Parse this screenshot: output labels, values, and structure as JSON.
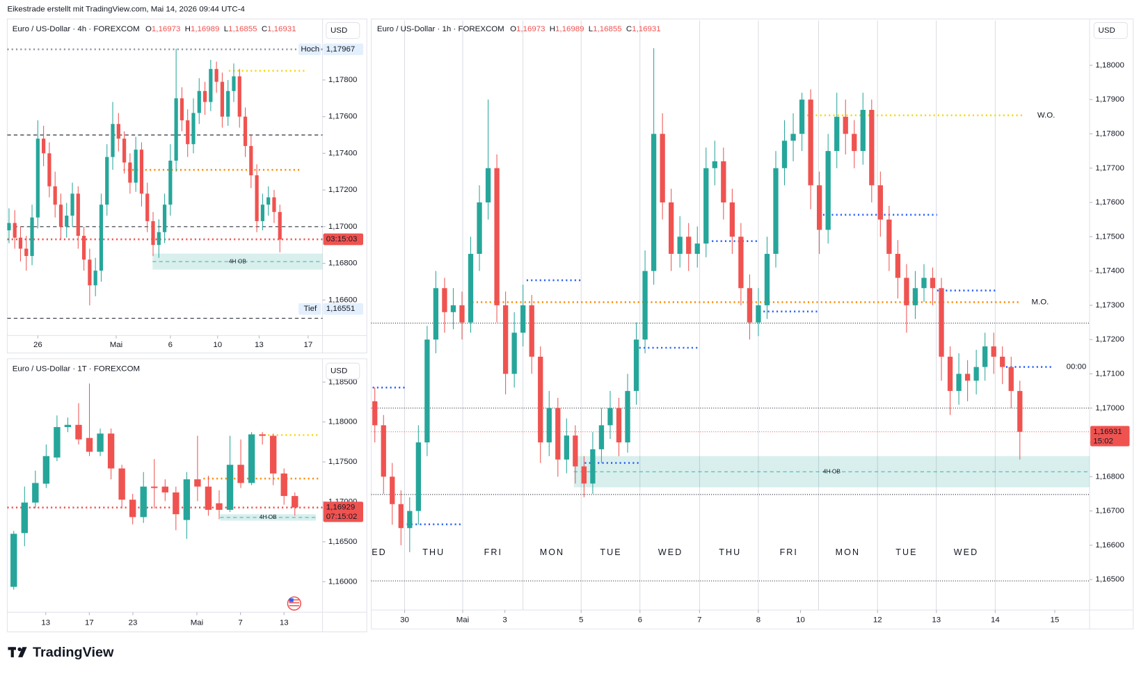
{
  "header": {
    "title": "Eikestrade erstellt mit TradingView.com, Mai 14, 2026 09:44 UTC-4"
  },
  "footer": {
    "logo": "TradingView"
  },
  "chart_data": [
    {
      "type": "candlestick",
      "title": "Euro / US-Dollar · 4h · FOREXCOM",
      "ohlc_legend": [
        {
          "key": "O",
          "text": "1,16973"
        },
        {
          "key": "H",
          "text": "1,16989"
        },
        {
          "key": "L",
          "text": "1,16855"
        },
        {
          "key": "C",
          "text": "1,16931"
        }
      ],
      "currency": "USD",
      "up_color": "#26a69a",
      "down_color": "#ef5350",
      "grid": false,
      "open": [
        1.1698,
        1.1702,
        1.1694,
        1.1688,
        1.1684,
        1.1705,
        1.1748,
        1.174,
        1.1722,
        1.1712,
        1.17,
        1.1706,
        1.1718,
        1.1695,
        1.1682,
        1.1668,
        1.1676,
        1.1712,
        1.1738,
        1.1756,
        1.1748,
        1.1735,
        1.1724,
        1.1742,
        1.1718,
        1.1703,
        1.169,
        1.1697,
        1.1712,
        1.1736,
        1.177,
        1.1758,
        1.1745,
        1.1762,
        1.1774,
        1.1768,
        1.1786,
        1.1779,
        1.176,
        1.1774,
        1.1782,
        1.176,
        1.1744,
        1.1728,
        1.1703,
        1.1712,
        1.1716,
        1.1708
      ],
      "high": [
        1.171,
        1.1709,
        1.17,
        1.1695,
        1.1712,
        1.1758,
        1.1755,
        1.1746,
        1.173,
        1.1718,
        1.1713,
        1.1724,
        1.1722,
        1.17,
        1.1688,
        1.1683,
        1.1718,
        1.1745,
        1.1768,
        1.1762,
        1.1752,
        1.174,
        1.1749,
        1.1746,
        1.1724,
        1.1708,
        1.1704,
        1.1718,
        1.1745,
        1.1797,
        1.1776,
        1.1764,
        1.177,
        1.1781,
        1.1779,
        1.1791,
        1.179,
        1.1784,
        1.178,
        1.1789,
        1.1786,
        1.1765,
        1.175,
        1.1734,
        1.1718,
        1.1722,
        1.172,
        1.1712
      ],
      "low": [
        1.1691,
        1.1688,
        1.1681,
        1.1676,
        1.1679,
        1.1699,
        1.1733,
        1.1716,
        1.1705,
        1.1693,
        1.1694,
        1.17,
        1.1688,
        1.1676,
        1.1657,
        1.1662,
        1.167,
        1.1706,
        1.1731,
        1.1741,
        1.1729,
        1.1718,
        1.1719,
        1.1711,
        1.1697,
        1.1684,
        1.1683,
        1.1691,
        1.1706,
        1.173,
        1.1752,
        1.1738,
        1.174,
        1.1756,
        1.1761,
        1.1763,
        1.1773,
        1.1754,
        1.1755,
        1.1768,
        1.1754,
        1.1738,
        1.1721,
        1.1697,
        1.1698,
        1.1706,
        1.1702,
        1.1686
      ],
      "close": [
        1.1702,
        1.1694,
        1.1688,
        1.1684,
        1.1705,
        1.1748,
        1.174,
        1.1722,
        1.1712,
        1.17,
        1.1706,
        1.1718,
        1.1695,
        1.1682,
        1.1668,
        1.1676,
        1.1712,
        1.1738,
        1.1756,
        1.1748,
        1.1735,
        1.1724,
        1.1742,
        1.1718,
        1.1703,
        1.169,
        1.1697,
        1.1712,
        1.1736,
        1.177,
        1.1758,
        1.1745,
        1.1762,
        1.1774,
        1.1768,
        1.1786,
        1.1779,
        1.176,
        1.1774,
        1.1782,
        1.176,
        1.1744,
        1.1728,
        1.1703,
        1.1712,
        1.1716,
        1.1708,
        1.1693
      ],
      "xlim": [
        -0.3,
        54.4
      ],
      "xticks": [
        {
          "value": 5,
          "label": "26"
        },
        {
          "value": 18.6,
          "label": "Mai"
        },
        {
          "value": 28,
          "label": "6"
        },
        {
          "value": 36.2,
          "label": "10"
        },
        {
          "value": 43.4,
          "label": "13"
        },
        {
          "value": 51.9,
          "label": "17"
        }
      ],
      "ylim": [
        1.16406,
        1.18125
      ],
      "yticks": [
        {
          "value": 1.166,
          "label": "1,16600"
        },
        {
          "value": 1.168,
          "label": "1,16800"
        },
        {
          "value": 1.17,
          "label": "1,17000"
        },
        {
          "value": 1.172,
          "label": "1,17200"
        },
        {
          "value": 1.174,
          "label": "1,17400"
        },
        {
          "value": 1.176,
          "label": "1,17600"
        },
        {
          "value": 1.178,
          "label": "1,17800"
        }
      ],
      "levels": [
        {
          "value": 1.175,
          "color": "#131722",
          "style": "dashed"
        },
        {
          "value": 1.17,
          "color": "#131722",
          "style": "dashed"
        },
        {
          "value": 1.165,
          "color": "#131722",
          "style": "dashed"
        },
        {
          "value": 1.17967,
          "color": "#9598a1",
          "style": "dotted"
        },
        {
          "value": 1.1785,
          "color": "#f5d90a",
          "style": "dotted"
        },
        {
          "value": 1.1731,
          "color": "#ff8c00",
          "style": "dotted"
        },
        {
          "value": 1.16931,
          "color": "#ef5350",
          "style": "dotted"
        }
      ],
      "zones": [
        {
          "label": "4H OB",
          "low": 1.16766,
          "high": 1.16853
        }
      ],
      "price_labels": [
        {
          "tag": "Hoch",
          "text": "1,17967",
          "value": 1.17967
        },
        {
          "tag": "Tief",
          "text": "1,16551",
          "value": 1.16551
        },
        {
          "text": "03:15:03",
          "value": 1.16931,
          "color": "#ef5350"
        }
      ]
    },
    {
      "type": "candlestick",
      "title": "Euro / US-Dollar · 1T · FOREXCOM",
      "currency": "USD",
      "up_color": "#26a69a",
      "down_color": "#ef5350",
      "grid": false,
      "open": [
        1.15936,
        1.16609,
        1.16991,
        1.17227,
        1.17555,
        1.17936,
        1.17964,
        1.178,
        1.17627,
        1.17855,
        1.17418,
        1.17027,
        1.16809,
        1.17191,
        1.17191,
        1.17118,
        1.16773,
        1.17282,
        1.17191,
        1.16982,
        1.169,
        1.17464,
        1.17236,
        1.17845,
        1.17827,
        1.17355,
        1.17073
      ],
      "high": [
        1.16636,
        1.17191,
        1.17391,
        1.17718,
        1.18082,
        1.18055,
        1.18236,
        1.18482,
        1.17918,
        1.17918,
        1.17464,
        1.171,
        1.17373,
        1.17536,
        1.17282,
        1.17191,
        1.17373,
        1.17827,
        1.17327,
        1.17145,
        1.17827,
        1.17782,
        1.17873,
        1.17873,
        1.17855,
        1.17418,
        1.17118
      ],
      "low": [
        1.159,
        1.16445,
        1.16918,
        1.17173,
        1.17509,
        1.17873,
        1.17718,
        1.17573,
        1.17573,
        1.17282,
        1.16918,
        1.16718,
        1.16736,
        1.16918,
        1.17009,
        1.16645,
        1.16536,
        1.17009,
        1.16827,
        1.16782,
        1.16873,
        1.17173,
        1.17209,
        1.17718,
        1.17209,
        1.16964,
        1.16827
      ],
      "close": [
        1.166,
        1.16991,
        1.17236,
        1.17573,
        1.17936,
        1.17964,
        1.17782,
        1.17627,
        1.17855,
        1.17418,
        1.17027,
        1.16809,
        1.17191,
        1.17173,
        1.17118,
        1.16845,
        1.17282,
        1.17191,
        1.169,
        1.169,
        1.17464,
        1.17236,
        1.17845,
        1.17827,
        1.17355,
        1.17073,
        1.16929
      ],
      "xlim": [
        -0.6,
        28.56
      ],
      "xticks": [
        {
          "value": 2.96,
          "label": "13"
        },
        {
          "value": 6.99,
          "label": "17"
        },
        {
          "value": 11.02,
          "label": "23"
        },
        {
          "value": 16.94,
          "label": "Mai"
        },
        {
          "value": 20.97,
          "label": "7"
        },
        {
          "value": 25,
          "label": "13"
        }
      ],
      "ylim": [
        1.15618,
        1.18773
      ],
      "yticks": [
        {
          "value": 1.16,
          "label": "1,16000"
        },
        {
          "value": 1.165,
          "label": "1,16500"
        },
        {
          "value": 1.17,
          "label": "1,17000"
        },
        {
          "value": 1.175,
          "label": "1,17500"
        },
        {
          "value": 1.18,
          "label": "1,18000"
        },
        {
          "value": 1.185,
          "label": "1,18500"
        }
      ],
      "levels": [
        {
          "value": 1.17836,
          "color": "#f5d90a",
          "style": "dotted"
        },
        {
          "value": 1.17291,
          "color": "#ff8c00",
          "style": "dotted"
        },
        {
          "value": 1.16929,
          "color": "#ef5350",
          "style": "dotted"
        }
      ],
      "zones": [
        {
          "label": "4H OB",
          "low": 1.16764,
          "high": 1.16845
        }
      ],
      "price_labels": [
        {
          "text": "1,16929",
          "sub": "07:15:02",
          "value": 1.16929,
          "color": "#ef5350"
        }
      ]
    },
    {
      "type": "candlestick",
      "title": "Euro / US-Dollar · 1h · FOREXCOM",
      "ohlc_legend": [
        {
          "key": "O",
          "text": "1,16973"
        },
        {
          "key": "H",
          "text": "1,16989"
        },
        {
          "key": "L",
          "text": "1,16855"
        },
        {
          "key": "C",
          "text": "1,16931"
        }
      ],
      "currency": "USD",
      "up_color": "#26a69a",
      "down_color": "#ef5350",
      "grid": false,
      "session_labels": [
        "ED",
        "THU",
        "FRI",
        "MON",
        "TUE",
        "WED",
        "THU",
        "FRI",
        "MON",
        "TUE",
        "WED"
      ],
      "open": [
        1.1702,
        1.1695,
        1.168,
        1.1672,
        1.1665,
        1.167,
        1.169,
        1.172,
        1.1735,
        1.1728,
        1.173,
        1.1725,
        1.1745,
        1.176,
        1.177,
        1.173,
        1.171,
        1.1722,
        1.173,
        1.1715,
        1.169,
        1.17,
        1.1685,
        1.1692,
        1.1683,
        1.1678,
        1.1688,
        1.1695,
        1.17,
        1.169,
        1.1705,
        1.172,
        1.174,
        1.178,
        1.176,
        1.1745,
        1.175,
        1.1745,
        1.1748,
        1.177,
        1.1772,
        1.176,
        1.175,
        1.1735,
        1.1725,
        1.173,
        1.1745,
        1.177,
        1.1778,
        1.178,
        1.179,
        1.1765,
        1.1752,
        1.1775,
        1.1785,
        1.178,
        1.1775,
        1.1787,
        1.1765,
        1.1755,
        1.1745,
        1.1738,
        1.173,
        1.1735,
        1.1738,
        1.1735,
        1.1715,
        1.1705,
        1.171,
        1.1708,
        1.1712,
        1.1718,
        1.1715,
        1.1712,
        1.1705
      ],
      "high": [
        1.1706,
        1.1698,
        1.1684,
        1.1676,
        1.1674,
        1.1695,
        1.1724,
        1.174,
        1.1738,
        1.1735,
        1.1734,
        1.175,
        1.1765,
        1.179,
        1.1774,
        1.1734,
        1.1728,
        1.1736,
        1.1733,
        1.1718,
        1.1705,
        1.1703,
        1.1697,
        1.1695,
        1.1686,
        1.1693,
        1.17,
        1.1705,
        1.1703,
        1.171,
        1.1725,
        1.1746,
        1.1805,
        1.1786,
        1.1764,
        1.1756,
        1.1754,
        1.1753,
        1.1776,
        1.1778,
        1.1776,
        1.1764,
        1.1754,
        1.1739,
        1.1735,
        1.175,
        1.1775,
        1.1784,
        1.1786,
        1.1792,
        1.1793,
        1.1769,
        1.178,
        1.1792,
        1.179,
        1.1784,
        1.1792,
        1.179,
        1.1769,
        1.1759,
        1.1749,
        1.1742,
        1.174,
        1.1742,
        1.1741,
        1.1738,
        1.1718,
        1.1716,
        1.1714,
        1.1717,
        1.1722,
        1.1722,
        1.1718,
        1.1715,
        1.1708
      ],
      "low": [
        1.169,
        1.1675,
        1.1666,
        1.166,
        1.1658,
        1.1666,
        1.1686,
        1.1716,
        1.1722,
        1.1723,
        1.172,
        1.1722,
        1.174,
        1.1755,
        1.1725,
        1.1704,
        1.1706,
        1.1718,
        1.171,
        1.1684,
        1.1686,
        1.168,
        1.1681,
        1.1678,
        1.1674,
        1.1675,
        1.1684,
        1.1691,
        1.1686,
        1.1687,
        1.1701,
        1.1716,
        1.1736,
        1.1755,
        1.174,
        1.1741,
        1.174,
        1.1741,
        1.1744,
        1.1765,
        1.1755,
        1.1745,
        1.173,
        1.172,
        1.1721,
        1.1726,
        1.1741,
        1.1765,
        1.1772,
        1.1775,
        1.1758,
        1.1745,
        1.1748,
        1.177,
        1.1774,
        1.177,
        1.1771,
        1.176,
        1.175,
        1.174,
        1.1732,
        1.1722,
        1.1726,
        1.1731,
        1.173,
        1.1708,
        1.1698,
        1.1701,
        1.1702,
        1.1704,
        1.1708,
        1.171,
        1.1707,
        1.17,
        1.1685
      ],
      "close": [
        1.1695,
        1.168,
        1.1672,
        1.1665,
        1.167,
        1.169,
        1.172,
        1.1735,
        1.1728,
        1.173,
        1.1725,
        1.1745,
        1.176,
        1.177,
        1.173,
        1.171,
        1.1722,
        1.173,
        1.1715,
        1.169,
        1.17,
        1.1685,
        1.1692,
        1.1683,
        1.1678,
        1.1688,
        1.1695,
        1.17,
        1.169,
        1.1705,
        1.172,
        1.174,
        1.178,
        1.176,
        1.1745,
        1.175,
        1.1745,
        1.1748,
        1.177,
        1.1772,
        1.176,
        1.175,
        1.1735,
        1.1725,
        1.173,
        1.1745,
        1.177,
        1.1778,
        1.178,
        1.179,
        1.1765,
        1.1752,
        1.1775,
        1.1785,
        1.178,
        1.1775,
        1.1787,
        1.1765,
        1.1755,
        1.1745,
        1.1738,
        1.173,
        1.1735,
        1.1738,
        1.1735,
        1.1715,
        1.1705,
        1.171,
        1.1708,
        1.1712,
        1.1718,
        1.1715,
        1.1712,
        1.1705,
        1.16931
      ],
      "xlim": [
        -0.417,
        82
      ],
      "xticks": [
        {
          "value": 3.42,
          "label": "30"
        },
        {
          "value": 10.08,
          "label": "Mai"
        },
        {
          "value": 14.92,
          "label": "3"
        },
        {
          "value": 23.67,
          "label": "5"
        },
        {
          "value": 30.42,
          "label": "6"
        },
        {
          "value": 37.25,
          "label": "7"
        },
        {
          "value": 44,
          "label": "8"
        },
        {
          "value": 48.83,
          "label": "10"
        },
        {
          "value": 57.67,
          "label": "12"
        },
        {
          "value": 64.42,
          "label": "13"
        },
        {
          "value": 71.17,
          "label": "14"
        },
        {
          "value": 78,
          "label": "15"
        }
      ],
      "ylim": [
        1.16411,
        1.18131
      ],
      "yticks": [
        {
          "value": 1.165,
          "label": "1,16500"
        },
        {
          "value": 1.166,
          "label": "1,16600"
        },
        {
          "value": 1.167,
          "label": "1,16700"
        },
        {
          "value": 1.168,
          "label": "1,16800"
        },
        {
          "value": 1.169,
          "label": "1,16900"
        },
        {
          "value": 1.17,
          "label": "1,17000"
        },
        {
          "value": 1.171,
          "label": "1,17100"
        },
        {
          "value": 1.172,
          "label": "1,17200"
        },
        {
          "value": 1.173,
          "label": "1,17300"
        },
        {
          "value": 1.174,
          "label": "1,17400"
        },
        {
          "value": 1.175,
          "label": "1,17500"
        },
        {
          "value": 1.176,
          "label": "1,17600"
        },
        {
          "value": 1.177,
          "label": "1,17700"
        },
        {
          "value": 1.178,
          "label": "1,17800"
        },
        {
          "value": 1.179,
          "label": "1,17900"
        },
        {
          "value": 1.18,
          "label": "1,18000"
        }
      ],
      "levels": [
        {
          "name": "W.O.",
          "value": 1.17854,
          "color": "#f5d90a",
          "style": "dotted"
        },
        {
          "name": "M.O.",
          "value": 1.17309,
          "color": "#ff8c00",
          "style": "dotted"
        },
        {
          "name": "00:00",
          "value": 1.1712,
          "color": "#2962ff",
          "style": "dotted"
        },
        {
          "value": 1.17248,
          "color": "#131722",
          "style": "dotted-thin"
        },
        {
          "value": 1.17,
          "color": "#131722",
          "style": "dotted-thin"
        },
        {
          "value": 1.16748,
          "color": "#131722",
          "style": "dotted-thin"
        },
        {
          "value": 1.16496,
          "color": "#131722",
          "style": "dotted-thin"
        },
        {
          "value": 1.16931,
          "color": "#ef5350",
          "style": "dotted-thin"
        },
        {
          "value": 1.17373,
          "color": "#2962ff",
          "style": "dotted"
        },
        {
          "value": 1.17564,
          "color": "#2962ff",
          "style": "dotted"
        },
        {
          "value": 1.17343,
          "color": "#2962ff",
          "style": "dotted"
        },
        {
          "value": 1.17487,
          "color": "#2962ff",
          "style": "dotted"
        },
        {
          "value": 1.17282,
          "color": "#2962ff",
          "style": "dotted"
        },
        {
          "value": 1.17176,
          "color": "#2962ff",
          "style": "dotted"
        },
        {
          "value": 1.1706,
          "color": "#2962ff",
          "style": "dotted"
        },
        {
          "value": 1.1684,
          "color": "#2962ff",
          "style": "dotted"
        },
        {
          "value": 1.16661,
          "color": "#2962ff",
          "style": "dotted"
        }
      ],
      "zones": [
        {
          "label": "4H OB",
          "low": 1.16769,
          "high": 1.1686
        }
      ],
      "price_labels": [
        {
          "text": "1,16931",
          "sub": "15:02",
          "value": 1.16931,
          "color": "#ef5350"
        }
      ]
    }
  ]
}
